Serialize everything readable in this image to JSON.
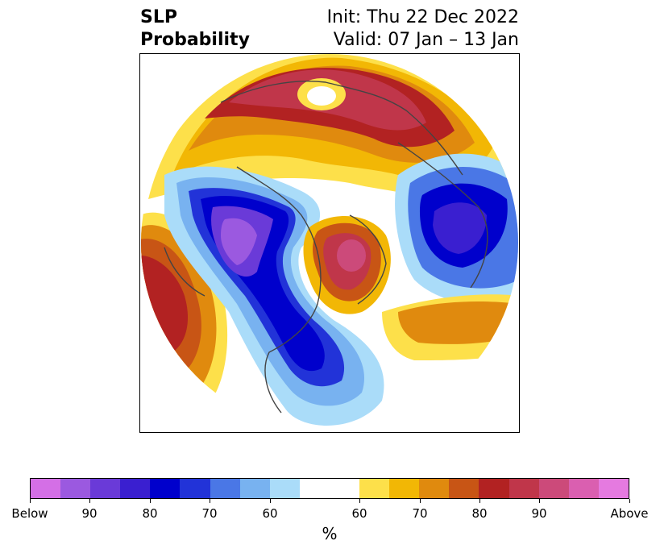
{
  "header": {
    "left_line1": "SLP",
    "left_line2": "Probability",
    "right_line1": "Init: Thu 22 Dec 2022",
    "right_line2": "Valid: 07 Jan – 13 Jan"
  },
  "colorbar": {
    "colors": [
      "#d46fe6",
      "#9b59e0",
      "#6a3ad8",
      "#3a1fd0",
      "#0000cc",
      "#2233d8",
      "#4a77e6",
      "#78b2f0",
      "#aadcf9",
      "#ffffff",
      "#ffffff",
      "#fde04a",
      "#f2b705",
      "#e08a0e",
      "#c85515",
      "#b22222",
      "#c0364a",
      "#cc4a7a",
      "#da5fb0",
      "#e57ae0"
    ],
    "tick_labels": [
      "Below",
      "90",
      "80",
      "70",
      "60",
      "60",
      "70",
      "80",
      "90",
      "Above"
    ],
    "unit": "%"
  }
}
